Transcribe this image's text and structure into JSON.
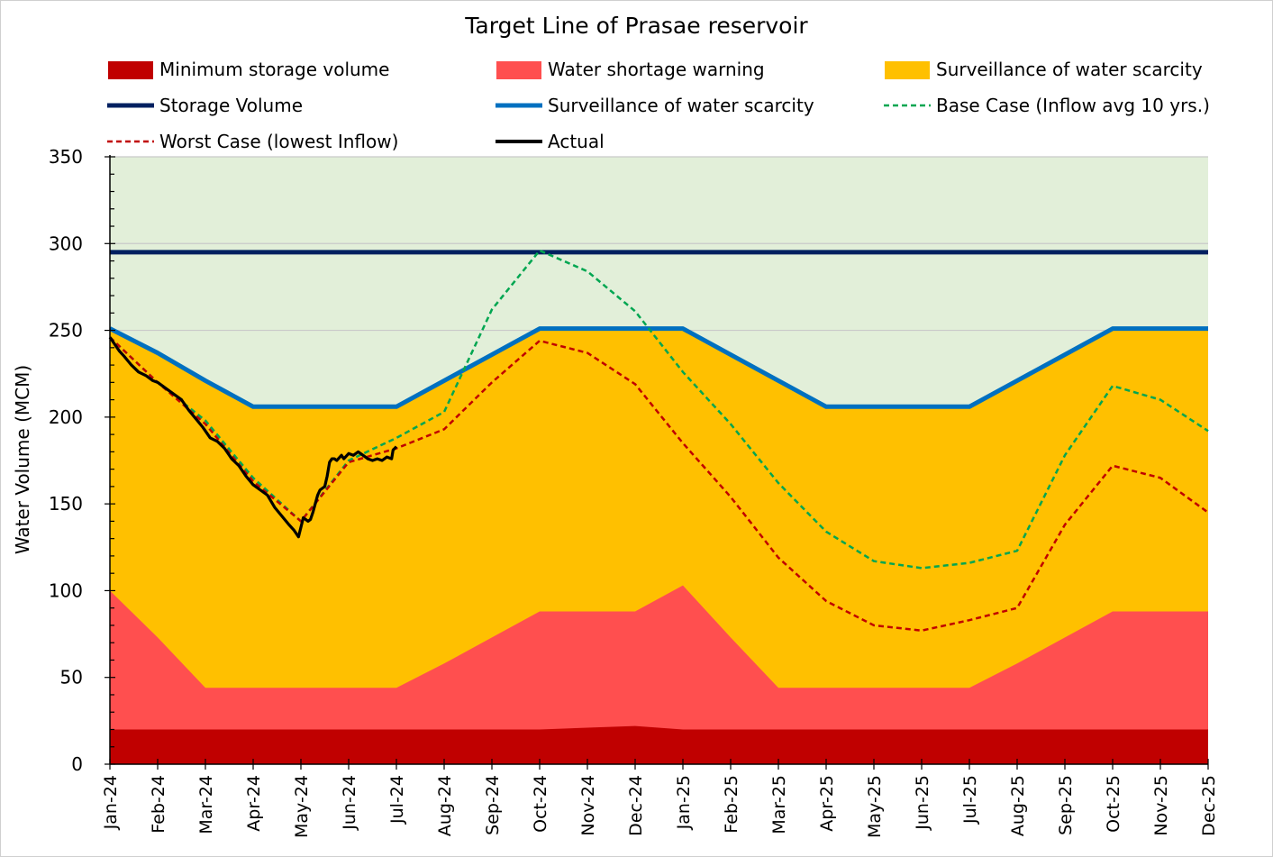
{
  "chart_data": {
    "type": "area",
    "title": "Target Line of Prasae reservoir",
    "ylabel": "Water Volume (MCM)",
    "xlabel": "",
    "ylim": [
      0,
      350
    ],
    "yticks": [
      0,
      50,
      100,
      150,
      200,
      250,
      300,
      350
    ],
    "x_labels": [
      "Jan-24",
      "Feb-24",
      "Mar-24",
      "Apr-24",
      "May-24",
      "Jun-24",
      "Jul-24",
      "Aug-24",
      "Sep-24",
      "Oct-24",
      "Nov-24",
      "Dec-24",
      "Jan-25",
      "Feb-25",
      "Mar-25",
      "Apr-25",
      "May-25",
      "Jun-25",
      "Jul-25",
      "Aug-25",
      "Sep-25",
      "Oct-25",
      "Nov-25",
      "Dec-25"
    ],
    "background_zone_color": "#e2efd9",
    "grid": "horizontal",
    "legend_position": "top",
    "series": [
      {
        "name": "Minimum storage volume",
        "kind": "area",
        "color": "#c00000",
        "values": [
          20,
          20,
          20,
          20,
          20,
          20,
          20,
          20,
          20,
          20,
          21,
          22,
          20,
          20,
          20,
          20,
          20,
          20,
          20,
          20,
          20,
          20,
          20,
          20
        ]
      },
      {
        "name": "Water shortage warning",
        "kind": "area",
        "color": "#ff4f4f",
        "values": [
          100,
          73,
          44,
          44,
          44,
          44,
          44,
          58,
          73,
          88,
          88,
          88,
          103,
          73,
          44,
          44,
          44,
          44,
          44,
          58,
          73,
          88,
          88,
          88
        ]
      },
      {
        "name": "Surveillance of water scarcity",
        "kind": "area",
        "color": "#ffc000",
        "values": [
          251,
          237,
          221,
          206,
          206,
          206,
          206,
          221,
          236,
          251,
          251,
          251,
          251,
          236,
          221,
          206,
          206,
          206,
          206,
          221,
          236,
          251,
          251,
          251
        ]
      },
      {
        "name": "Storage Volume",
        "kind": "line",
        "color": "#002060",
        "values": [
          295,
          295,
          295,
          295,
          295,
          295,
          295,
          295,
          295,
          295,
          295,
          295,
          295,
          295,
          295,
          295,
          295,
          295,
          295,
          295,
          295,
          295,
          295,
          295
        ]
      },
      {
        "name": "Surveillance of water scarcity",
        "kind": "line",
        "color": "#0070c0",
        "values": [
          251,
          237,
          221,
          206,
          206,
          206,
          206,
          221,
          236,
          251,
          251,
          251,
          251,
          236,
          221,
          206,
          206,
          206,
          206,
          221,
          236,
          251,
          251,
          251
        ]
      },
      {
        "name": "Base Case (Inflow avg 10 yrs.)",
        "kind": "dashed",
        "color": "#00a651",
        "values": [
          246,
          220,
          198,
          165,
          140,
          175,
          188,
          203,
          262,
          296,
          284,
          261,
          226,
          196,
          162,
          134,
          117,
          113,
          116,
          123,
          178,
          218,
          210,
          192
        ]
      },
      {
        "name": "Worst Case (lowest Inflow)",
        "kind": "dashed",
        "color": "#c00000",
        "values": [
          246,
          220,
          196,
          163,
          140,
          174,
          182,
          193,
          220,
          244,
          237,
          219,
          185,
          154,
          119,
          94,
          80,
          77,
          83,
          90,
          138,
          172,
          165,
          145
        ]
      },
      {
        "name": "Actual",
        "kind": "line",
        "color": "#000000",
        "x": [
          0,
          0.1,
          0.2,
          0.3,
          0.45,
          0.6,
          0.75,
          0.9,
          1.0,
          1.1,
          1.2,
          1.35,
          1.5,
          1.65,
          1.8,
          1.95,
          2.1,
          2.25,
          2.4,
          2.55,
          2.7,
          2.85,
          3.0,
          3.15,
          3.3,
          3.45,
          3.6,
          3.75,
          3.85,
          3.95,
          4.05,
          4.1,
          4.15,
          4.2,
          4.25,
          4.3,
          4.35,
          4.4,
          4.5,
          4.55,
          4.6,
          4.65,
          4.7,
          4.75,
          4.85,
          4.9,
          5.0,
          5.1,
          5.2,
          5.3,
          5.4,
          5.5,
          5.6,
          5.7,
          5.8,
          5.9,
          5.93,
          6.0
        ],
        "values": [
          246,
          242,
          238,
          235,
          230,
          226,
          224,
          221,
          220,
          218,
          216,
          213,
          210,
          204,
          199,
          194,
          188,
          186,
          182,
          176,
          172,
          166,
          161,
          158,
          155,
          148,
          143,
          138,
          135,
          131,
          142,
          141,
          140,
          141,
          145,
          150,
          155,
          158,
          160,
          166,
          174,
          176,
          176,
          175,
          178,
          176,
          179,
          178,
          180,
          178,
          176,
          175,
          176,
          175,
          177,
          176,
          181,
          183
        ]
      }
    ]
  }
}
